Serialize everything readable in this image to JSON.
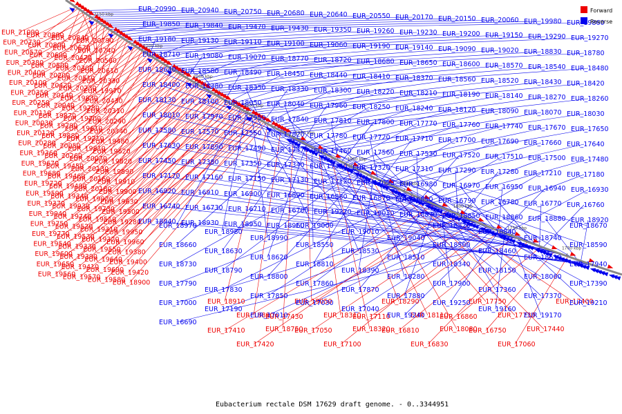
{
  "caption": "Eubacterium rectale DSM 17629 draft genome. - 0..3344951",
  "legend": [
    {
      "label": "Forward",
      "color": "#ee0000"
    },
    {
      "label": "Reverse",
      "color": "#0000ee"
    }
  ],
  "strand_colors": {
    "forward": "#ee0000",
    "reverse": "#0000ee"
  },
  "ticks": [
    "2150 kbp",
    "2100 kbp",
    "2050 kbp",
    "2000 kbp",
    "1950 kbp",
    "1900 kbp",
    "1850 kbp",
    "1800 kbp",
    "1750 kbp",
    "1700 kbp"
  ],
  "labels_forward": [
    "EUR_21090",
    "EUR_20890",
    "EUR_20840",
    "EUR_20790",
    "EUR_20730",
    "EUR_20800",
    "EUR_20670",
    "EUR_20740",
    "EUR_20570",
    "EUR_20690",
    "EUR_20470",
    "EUR_20560",
    "EUR_20380",
    "EUR_20500",
    "EUR_20300",
    "EUR_20610",
    "EUR_20400",
    "EUR_20200",
    "EUR_20510",
    "EUR_20330",
    "EUR_20100",
    "EUR_20420",
    "EUR_20230",
    "EUR_19970",
    "EUR_20350",
    "EUR_20140",
    "EUR_19830",
    "EUR_20430",
    "EUR_20250",
    "EUR_20040",
    "EUR_19780",
    "EUR_20310",
    "EUR_20110",
    "EUR_19870",
    "EUR_19700",
    "EUR_20240",
    "EUR_20030",
    "EUR_19790",
    "EUR_19610",
    "EUR_20340",
    "EUR_20120",
    "EUR_19880",
    "EUR_19710",
    "EUR_19480",
    "EUR_20280",
    "EUR_20050",
    "EUR_19810",
    "EUR_19620",
    "EUR_19360",
    "EUR_20260",
    "EUR_20070",
    "EUR_19820",
    "EUR_19670",
    "EUR_19450",
    "EUR_20130",
    "EUR_19890",
    "EUR_19680",
    "EUR_19460",
    "EUR_20160",
    "EUR_19910",
    "EUR_19720",
    "EUR_19490",
    "EUR_20180",
    "EUR_19900",
    "EUR_19590",
    "EUR_19340",
    "EUR_19920",
    "EUR_19630",
    "EUR_19370",
    "EUR_19930",
    "EUR_19730",
    "EUR_19500",
    "EUR_19940",
    "EUR_19740",
    "EUR_19510",
    "EUR_19280",
    "EUR_19750",
    "EUR_19520",
    "EUR_19310",
    "EUR_19950",
    "EUR_19770",
    "EUR_19530",
    "EUR_19320",
    "EUR_19960",
    "EUR_19540",
    "EUR_19330",
    "EUR_19550",
    "EUR_19380",
    "EUR_19600",
    "EUR_19390",
    "EUR_19640",
    "EUR_19400",
    "EUR_19650",
    "EUR_19410",
    "EUR_19690",
    "EUR_19420",
    "EUR_19560",
    "EUR_19570",
    "EUR_19580",
    "EUR_18900",
    "EUR_18910",
    "EUR_18890",
    "EUR_18750",
    "EUR_19050",
    "EUR_18310",
    "EUR_18320",
    "EUR_18290",
    "EUR_18110",
    "EUR_18080",
    "EUR_17750",
    "EUR_17730",
    "EUR_17440",
    "EUR_17400",
    "EUR_17410",
    "EUR_17420",
    "EUR_17430",
    "EUR_17050",
    "EUR_17100",
    "EUR_17110",
    "EUR_16810",
    "EUR_16830",
    "EUR_16860",
    "EUR_16750",
    "EUR_17060"
  ],
  "labels_reverse": [
    "EUR_20990",
    "EUR_20940",
    "EUR_20750",
    "EUR_20680",
    "EUR_20640",
    "EUR_20550",
    "EUR_20170",
    "EUR_20150",
    "EUR_20060",
    "EUR_19980",
    "EUR_19860",
    "EUR_19850",
    "EUR_19840",
    "EUR_19470",
    "EUR_19430",
    "EUR_19350",
    "EUR_19260",
    "EUR_19230",
    "EUR_19200",
    "EUR_19150",
    "EUR_19290",
    "EUR_19270",
    "EUR_19180",
    "EUR_19130",
    "EUR_19110",
    "EUR_19100",
    "EUR_19060",
    "EUR_19190",
    "EUR_19140",
    "EUR_19090",
    "EUR_19020",
    "EUR_18830",
    "EUR_18780",
    "EUR_18710",
    "EUR_19080",
    "EUR_19070",
    "EUR_18770",
    "EUR_18720",
    "EUR_18680",
    "EUR_18650",
    "EUR_18600",
    "EUR_18570",
    "EUR_18540",
    "EUR_18480",
    "EUR_18640",
    "EUR_18580",
    "EUR_18490",
    "EUR_18450",
    "EUR_18440",
    "EUR_18410",
    "EUR_18370",
    "EUR_18560",
    "EUR_18520",
    "EUR_18430",
    "EUR_18420",
    "EUR_18400",
    "EUR_18380",
    "EUR_18350",
    "EUR_18330",
    "EUR_18300",
    "EUR_18220",
    "EUR_18210",
    "EUR_18190",
    "EUR_18140",
    "EUR_18270",
    "EUR_18260",
    "EUR_18130",
    "EUR_18100",
    "EUR_18050",
    "EUR_18040",
    "EUR_17960",
    "EUR_18250",
    "EUR_18240",
    "EUR_18120",
    "EUR_18090",
    "EUR_18070",
    "EUR_18030",
    "EUR_18010",
    "EUR_17970",
    "EUR_17950",
    "EUR_17840",
    "EUR_17810",
    "EUR_17800",
    "EUR_17770",
    "EUR_17760",
    "EUR_17740",
    "EUR_17670",
    "EUR_17650",
    "EUR_17580",
    "EUR_17570",
    "EUR_17550",
    "EUR_17820",
    "EUR_17780",
    "EUR_17720",
    "EUR_17710",
    "EUR_17700",
    "EUR_17690",
    "EUR_17660",
    "EUR_17640",
    "EUR_17630",
    "EUR_17890",
    "EUR_17490",
    "EUR_17470",
    "EUR_17460",
    "EUR_17560",
    "EUR_17530",
    "EUR_17520",
    "EUR_17510",
    "EUR_17500",
    "EUR_17480",
    "EUR_17450",
    "EUR_17380",
    "EUR_17350",
    "EUR_17340",
    "EUR_17330",
    "EUR_17320",
    "EUR_17310",
    "EUR_17290",
    "EUR_17280",
    "EUR_17210",
    "EUR_17180",
    "EUR_17170",
    "EUR_17160",
    "EUR_17150",
    "EUR_17130",
    "EUR_17120",
    "EUR_17090",
    "EUR_16980",
    "EUR_16970",
    "EUR_16950",
    "EUR_16940",
    "EUR_16930",
    "EUR_16920",
    "EUR_16910",
    "EUR_16900",
    "EUR_16890",
    "EUR_16880",
    "EUR_16870",
    "EUR_16850",
    "EUR_16790",
    "EUR_16780",
    "EUR_16770",
    "EUR_16760",
    "EUR_16740",
    "EUR_16730",
    "EUR_16710",
    "EUR_16700",
    "EUR_19220",
    "EUR_19030",
    "EUR_18870",
    "EUR_18850",
    "EUR_18860",
    "EUR_18880",
    "EUR_18920",
    "EUR_18940",
    "EUR_18930",
    "EUR_18950",
    "EUR_18960",
    "EUR_18970",
    "EUR_18980",
    "EUR_18990",
    "EUR_19000",
    "EUR_19010",
    "EUR_19040",
    "EUR_18820",
    "EUR_18840",
    "EUR_18740",
    "EUR_18670",
    "EUR_18660",
    "EUR_18630",
    "EUR_18620",
    "EUR_18550",
    "EUR_18530",
    "EUR_18510",
    "EUR_18500",
    "EUR_18460",
    "EUR_18610",
    "EUR_18590",
    "EUR_18730",
    "EUR_18790",
    "EUR_18800",
    "EUR_18810",
    "EUR_18390",
    "EUR_18280",
    "EUR_18340",
    "EUR_18150",
    "EUR_18060",
    "EUR_17940",
    "EUR_17790",
    "EUR_17830",
    "EUR_17850",
    "EUR_17860",
    "EUR_17870",
    "EUR_17880",
    "EUR_17900",
    "EUR_17360",
    "EUR_17370",
    "EUR_17390",
    "EUR_17000",
    "EUR_17190",
    "EUR_17010",
    "EUR_17030",
    "EUR_17040",
    "EUR_19240",
    "EUR_19250",
    "EUR_19160",
    "EUR_19170",
    "EUR_19210",
    "EUR_16690"
  ]
}
